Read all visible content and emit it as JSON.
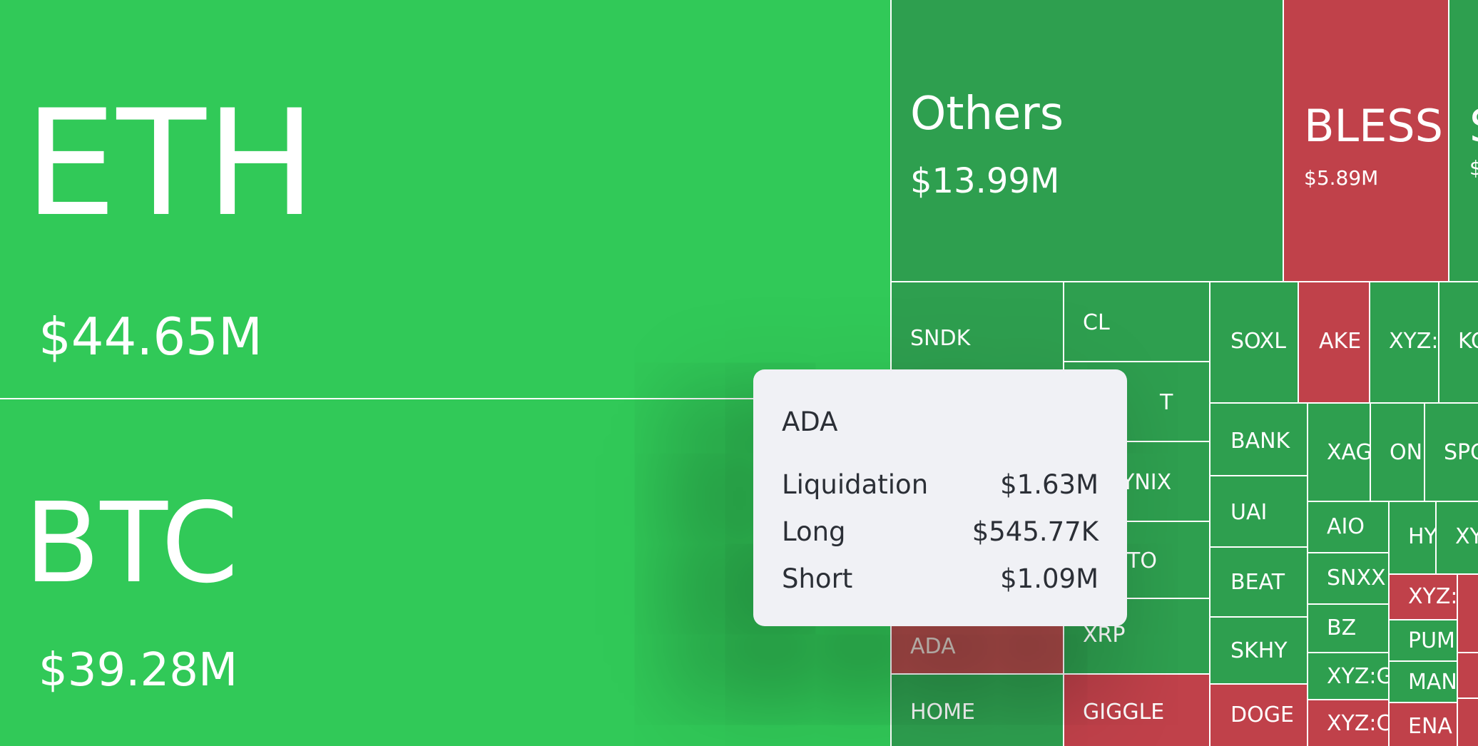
{
  "colors": {
    "green_big": "#31c958",
    "green": "#2e9f4f",
    "red": "#c0414a",
    "tooltip_bg": "#f0f1f5",
    "tooltip_text": "#2b2f36"
  },
  "tiles": [
    {
      "symbol": "ETH",
      "value": "$44.65M",
      "color": "green_big"
    },
    {
      "symbol": "BTC",
      "value": "$39.28M",
      "color": "green_big"
    },
    {
      "symbol": "Others",
      "value": "$13.99M",
      "color": "green"
    },
    {
      "symbol": "BLESS",
      "value": "$5.89M",
      "color": "red"
    },
    {
      "symbol": "S",
      "value": "$",
      "color": "green"
    },
    {
      "symbol": "SNDK",
      "value": "",
      "color": "green"
    },
    {
      "symbol": "CL",
      "value": "",
      "color": "green"
    },
    {
      "symbol": "T",
      "value": "",
      "color": "green"
    },
    {
      "symbol": "YNIX",
      "value": "",
      "color": "green"
    },
    {
      "symbol": "TO",
      "value": "",
      "color": "green"
    },
    {
      "symbol": "ADA",
      "value": "",
      "color": "red"
    },
    {
      "symbol": "XRP",
      "value": "",
      "color": "green"
    },
    {
      "symbol": "HOME",
      "value": "",
      "color": "green"
    },
    {
      "symbol": "GIGGLE",
      "value": "",
      "color": "red"
    },
    {
      "symbol": "SOXL",
      "value": "",
      "color": "green"
    },
    {
      "symbol": "AKE",
      "value": "",
      "color": "red"
    },
    {
      "symbol": "XYZ:",
      "value": "",
      "color": "green"
    },
    {
      "symbol": "KC",
      "value": "",
      "color": "green"
    },
    {
      "symbol": "BANK",
      "value": "",
      "color": "green"
    },
    {
      "symbol": "UAI",
      "value": "",
      "color": "green"
    },
    {
      "symbol": "BEAT",
      "value": "",
      "color": "green"
    },
    {
      "symbol": "SKHY",
      "value": "",
      "color": "green"
    },
    {
      "symbol": "DOGE",
      "value": "",
      "color": "red"
    },
    {
      "symbol": "XAG",
      "value": "",
      "color": "green"
    },
    {
      "symbol": "ON",
      "value": "",
      "color": "green"
    },
    {
      "symbol": "SPC",
      "value": "",
      "color": "green"
    },
    {
      "symbol": "AIO",
      "value": "",
      "color": "green"
    },
    {
      "symbol": "HY",
      "value": "",
      "color": "green"
    },
    {
      "symbol": "XY",
      "value": "",
      "color": "green"
    },
    {
      "symbol": "SNXX",
      "value": "",
      "color": "green"
    },
    {
      "symbol": "XYZ:",
      "value": "",
      "color": "red"
    },
    {
      "symbol": "",
      "value": "",
      "color": "red"
    },
    {
      "symbol": "BZ",
      "value": "",
      "color": "green"
    },
    {
      "symbol": "PUM",
      "value": "",
      "color": "green"
    },
    {
      "symbol": "",
      "value": "",
      "color": "red"
    },
    {
      "symbol": "XYZ:G",
      "value": "",
      "color": "green"
    },
    {
      "symbol": "MAN",
      "value": "",
      "color": "green"
    },
    {
      "symbol": "XYZ:C",
      "value": "",
      "color": "red"
    },
    {
      "symbol": "ENA",
      "value": "",
      "color": "red"
    },
    {
      "symbol": "",
      "value": "",
      "color": "red"
    }
  ],
  "tooltip": {
    "title": "ADA",
    "rows": [
      {
        "label": "Liquidation",
        "value": "$1.63M"
      },
      {
        "label": "Long",
        "value": "$545.77K"
      },
      {
        "label": "Short",
        "value": "$1.09M"
      }
    ]
  }
}
